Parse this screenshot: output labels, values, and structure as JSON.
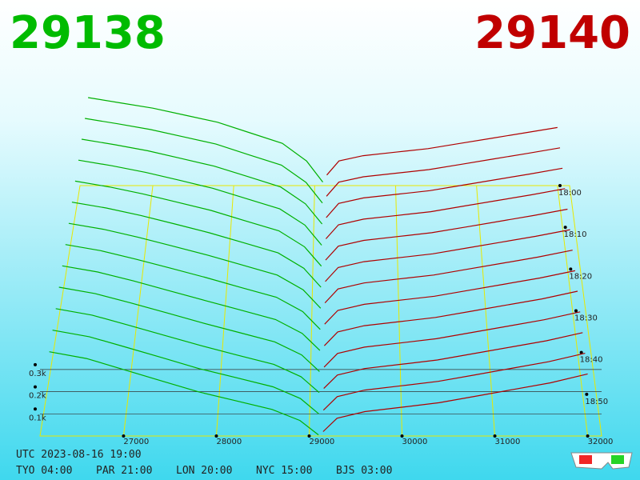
{
  "chart_data": {
    "type": "depth3d",
    "bid_price": 29138,
    "ask_price": 29140,
    "bid_color": "#00b000",
    "ask_color": "#b00000",
    "grid_color": "#e8e800",
    "xlim": [
      26100,
      32150
    ],
    "xticks": [
      27000,
      28000,
      29000,
      30000,
      31000,
      32000
    ],
    "zticks": [
      {
        "value": 100,
        "label": "0.1k"
      },
      {
        "value": 200,
        "label": "0.2k"
      },
      {
        "value": 300,
        "label": "0.3k"
      }
    ],
    "time_ticks": [
      "18:00",
      "18:10",
      "18:20",
      "18:30",
      "18:40",
      "18:50"
    ],
    "snapshots": {
      "times": [
        "18:00",
        "18:05",
        "18:10",
        "18:15",
        "18:20",
        "18:25",
        "18:30",
        "18:35",
        "18:40",
        "18:45",
        "18:50",
        "18:55",
        "19:00"
      ],
      "bid_prices": [
        26200,
        26600,
        27000,
        27400,
        27800,
        28200,
        28600,
        28900,
        29100
      ],
      "ask_prices": [
        29150,
        29300,
        29600,
        30000,
        30400,
        30800,
        31200,
        31600,
        32000
      ],
      "bid_depth": [
        [
          500,
          470,
          440,
          400,
          360,
          300,
          240,
          140,
          20
        ],
        [
          490,
          460,
          428,
          388,
          347,
          288,
          230,
          134,
          19
        ],
        [
          480,
          450,
          417,
          375,
          333,
          277,
          220,
          128,
          18
        ],
        [
          470,
          440,
          405,
          363,
          320,
          265,
          210,
          123,
          16
        ],
        [
          460,
          430,
          393,
          350,
          307,
          253,
          200,
          117,
          15
        ],
        [
          450,
          420,
          382,
          338,
          293,
          242,
          190,
          111,
          14
        ],
        [
          440,
          410,
          370,
          325,
          280,
          230,
          180,
          105,
          13
        ],
        [
          430,
          400,
          358,
          313,
          267,
          218,
          170,
          99,
          11
        ],
        [
          420,
          390,
          347,
          300,
          253,
          207,
          160,
          93,
          10
        ],
        [
          410,
          380,
          335,
          288,
          240,
          195,
          150,
          88,
          9
        ],
        [
          400,
          370,
          323,
          275,
          227,
          183,
          140,
          82,
          8
        ],
        [
          390,
          360,
          312,
          263,
          213,
          172,
          130,
          76,
          6
        ],
        [
          380,
          350,
          300,
          250,
          200,
          160,
          120,
          70,
          5
        ]
      ],
      "ask_depth": [
        [
          60,
          140,
          170,
          190,
          210,
          240,
          270,
          300,
          330
        ],
        [
          57,
          135,
          165,
          185,
          205,
          235,
          265,
          295,
          326
        ],
        [
          53,
          130,
          160,
          180,
          200,
          230,
          260,
          290,
          322
        ],
        [
          50,
          125,
          155,
          175,
          195,
          225,
          255,
          285,
          318
        ],
        [
          47,
          120,
          150,
          170,
          190,
          220,
          250,
          280,
          313
        ],
        [
          43,
          115,
          145,
          165,
          185,
          215,
          245,
          275,
          309
        ],
        [
          40,
          110,
          140,
          160,
          180,
          210,
          240,
          270,
          305
        ],
        [
          37,
          105,
          135,
          155,
          175,
          205,
          235,
          265,
          301
        ],
        [
          33,
          100,
          130,
          150,
          170,
          200,
          230,
          260,
          297
        ],
        [
          30,
          95,
          125,
          145,
          165,
          195,
          225,
          255,
          293
        ],
        [
          27,
          90,
          120,
          140,
          160,
          190,
          220,
          250,
          288
        ],
        [
          23,
          85,
          115,
          135,
          155,
          185,
          215,
          245,
          284
        ],
        [
          20,
          80,
          110,
          130,
          150,
          180,
          210,
          240,
          280
        ]
      ]
    },
    "clock": {
      "utc": "UTC 2023-08-16 19:00",
      "zones": [
        "TYO 04:00",
        "PAR 21:00",
        "LON 20:00",
        "NYC 15:00",
        "BJS 03:00"
      ]
    }
  }
}
